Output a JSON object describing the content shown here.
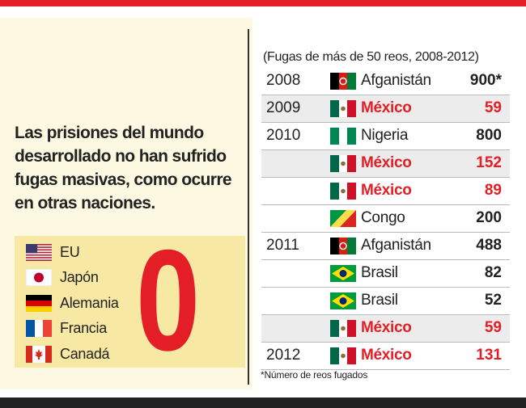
{
  "headline": "Las prisiones del mundo desarrollado no han sufrido fugas masivas, como ocurre en otras naciones.",
  "zero_countries": [
    {
      "name": "EU",
      "flag": "usa-flag"
    },
    {
      "name": "Japón",
      "flag": "japan-flag"
    },
    {
      "name": "Alemania",
      "flag": "germany-flag"
    },
    {
      "name": "Francia",
      "flag": "france-flag"
    },
    {
      "name": "Canadá",
      "flag": "canada-flag"
    }
  ],
  "zero_value": "0",
  "table_title": "(Fugas de más de 50 reos, 2008-2012)",
  "rows": [
    {
      "year": "2008",
      "country": "Afganistán",
      "flag": "afghanistan-flag",
      "value": "900*",
      "mexico": false,
      "shaded": false
    },
    {
      "year": "2009",
      "country": "México",
      "flag": "mexico-flag",
      "value": "59",
      "mexico": true,
      "shaded": true
    },
    {
      "year": "2010",
      "country": "Nigeria",
      "flag": "nigeria-flag",
      "value": "800",
      "mexico": false,
      "shaded": false
    },
    {
      "year": "",
      "country": "México",
      "flag": "mexico-flag",
      "value": "152",
      "mexico": true,
      "shaded": true
    },
    {
      "year": "",
      "country": "México",
      "flag": "mexico-flag",
      "value": "89",
      "mexico": true,
      "shaded": false
    },
    {
      "year": "",
      "country": "Congo",
      "flag": "congo-flag",
      "value": "200",
      "mexico": false,
      "shaded": false
    },
    {
      "year": "2011",
      "country": "Afganistán",
      "flag": "afghanistan-flag",
      "value": "488",
      "mexico": false,
      "shaded": false
    },
    {
      "year": "",
      "country": "Brasil",
      "flag": "brazil-flag",
      "value": "82",
      "mexico": false,
      "shaded": false
    },
    {
      "year": "",
      "country": "Brasil",
      "flag": "brazil-flag",
      "value": "52",
      "mexico": false,
      "shaded": false
    },
    {
      "year": "",
      "country": "México",
      "flag": "mexico-flag",
      "value": "59",
      "mexico": true,
      "shaded": true
    },
    {
      "year": "2012",
      "country": "México",
      "flag": "mexico-flag",
      "value": "131",
      "mexico": true,
      "shaded": false
    }
  ],
  "footnote": "*Número de reos fugados",
  "colors": {
    "accent_red": "#e41e26",
    "panel": "#fdf8e1",
    "zero_box": "#f7e8a4",
    "shade": "#ececec"
  }
}
